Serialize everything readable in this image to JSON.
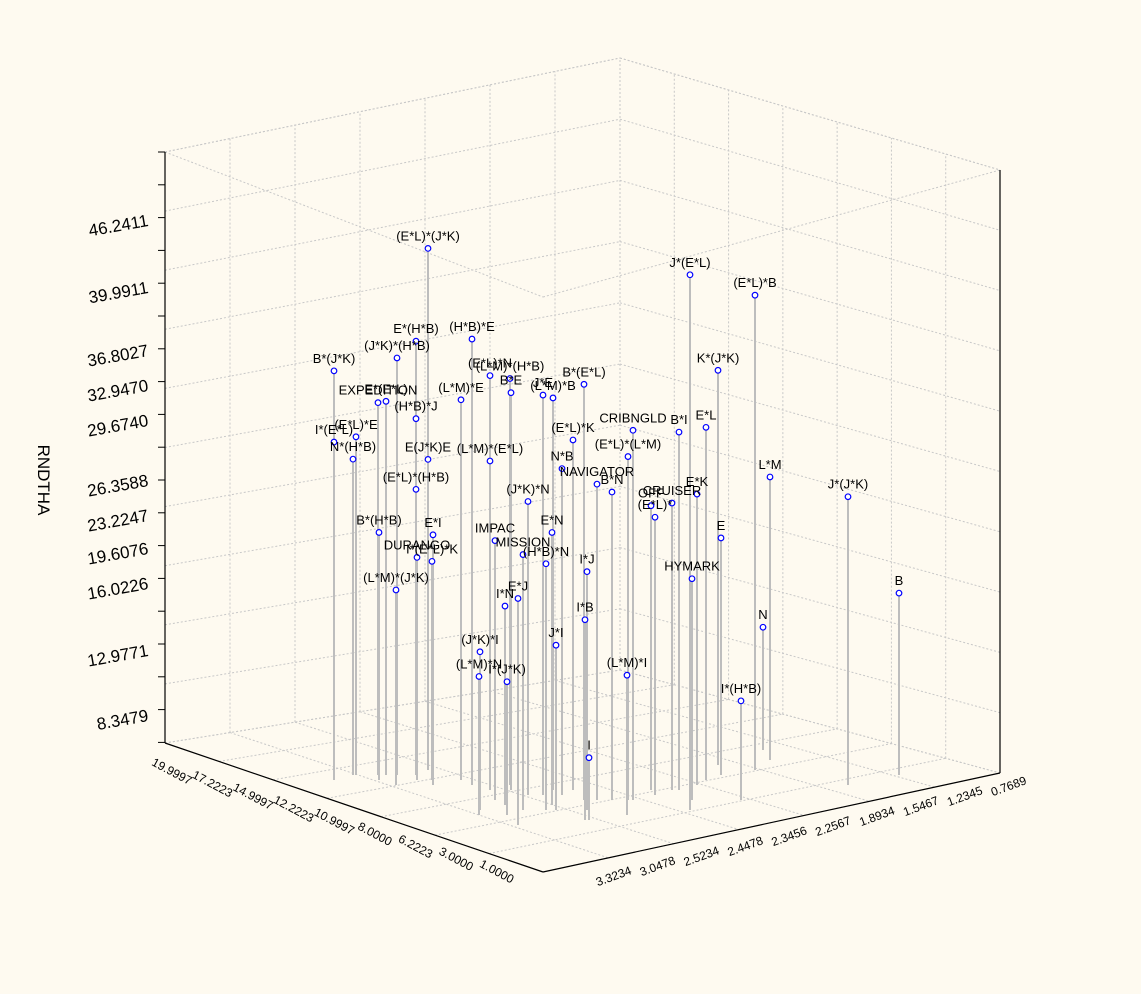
{
  "chart_data": {
    "type": "scatter",
    "projection": "3d-spike",
    "title": "",
    "zlabel": "RNDTHA",
    "xlabel": "",
    "ylabel": "",
    "z_ticks": [
      "46.2411",
      "39.9911",
      "36.8027",
      "32.9470",
      "29.6740",
      "26.3588",
      "23.2247",
      "19.6076",
      "16.0226",
      "12.9771",
      "8.3479"
    ],
    "left_axis_ticks": [
      "19.9997",
      "17.2223",
      "14.9997",
      "12.2223",
      "10.9997",
      "8.0000",
      "6.2223",
      "3.0000",
      "1.0000"
    ],
    "right_axis_ticks": [
      "3.3234",
      "3.0478",
      "2.5234",
      "2.4478",
      "2.3456",
      "2.2567",
      "1.8934",
      "1.5467",
      "1.2345",
      "0.7689"
    ],
    "colors": {
      "background": "#fefaf0",
      "grid": "#c8c8c8",
      "spike": "#bdbdbd",
      "point": "#0000ff",
      "text": "#000000"
    },
    "points": [
      {
        "label": "J*(E*L)",
        "z": 43.2
      },
      {
        "label": "(E*L)*(J*K)",
        "z": 41.4
      },
      {
        "label": "(E*L)*B",
        "z": 38.6
      },
      {
        "label": "(H*B)*E",
        "z": 36.4
      },
      {
        "label": "E*(H*B)",
        "z": 35.1
      },
      {
        "label": "B*(J*K)",
        "z": 33.6
      },
      {
        "label": "(J*K)*(H*B)",
        "z": 34.2
      },
      {
        "label": "(E*L)*N",
        "z": 34.0
      },
      {
        "label": "(L*M)*(H*B)",
        "z": 33.4
      },
      {
        "label": "B*(E*L)",
        "z": 34.1
      },
      {
        "label": "B*E",
        "z": 32.7
      },
      {
        "label": "J*E",
        "z": 32.9
      },
      {
        "label": "(L*M)*B",
        "z": 32.3
      },
      {
        "label": "K*(J*K)",
        "z": 32.5
      },
      {
        "label": "(L*M)*E",
        "z": 31.4
      },
      {
        "label": "EXPEDITION",
        "z": 30.8
      },
      {
        "label": "E*(E*L)",
        "z": 30.9
      },
      {
        "label": "CRIBNGLD",
        "z": 30.6
      },
      {
        "label": "B*I",
        "z": 29.7
      },
      {
        "label": "E*L",
        "z": 29.3
      },
      {
        "label": "(H*B)*J",
        "z": 29.2
      },
      {
        "label": "(E*L)*E",
        "z": 28.2
      },
      {
        "label": "I*(E*L)",
        "z": 27.8
      },
      {
        "label": "(E*L)*K",
        "z": 29.1
      },
      {
        "label": "(E*L)*(L*M)",
        "z": 28.6
      },
      {
        "label": "N*B",
        "z": 27.3
      },
      {
        "label": "(L*M)*(E*L)",
        "z": 27.5
      },
      {
        "label": "N*(H*B)",
        "z": 26.5
      },
      {
        "label": "E(J*K)E",
        "z": 26.1
      },
      {
        "label": "NAVIGATOR",
        "z": 26.5
      },
      {
        "label": "B*N",
        "z": 25.9
      },
      {
        "label": "(J*K)*N",
        "z": 24.8
      },
      {
        "label": "(E*L)*(H*B)",
        "z": 24.2
      },
      {
        "label": "CRUISER",
        "z": 24.3
      },
      {
        "label": "OFF",
        "z": 24.1
      },
      {
        "label": "E*K",
        "z": 24.6
      },
      {
        "label": "J*(J*K)",
        "z": 24.4
      },
      {
        "label": "L*M",
        "z": 24.0
      },
      {
        "label": "(E*L)*",
        "z": 23.6
      },
      {
        "label": "E*N",
        "z": 23.2
      },
      {
        "label": "IMPAC",
        "z": 22.2
      },
      {
        "label": "MISSION",
        "z": 21.9
      },
      {
        "label": "B*(H*B)",
        "z": 21.3
      },
      {
        "label": "E*I",
        "z": 21.5
      },
      {
        "label": "(H*B)*N",
        "z": 21.2
      },
      {
        "label": "I*J",
        "z": 20.6
      },
      {
        "label": "E*J",
        "z": 19.7
      },
      {
        "label": "E",
        "z": 20.5
      },
      {
        "label": "DURANGO",
        "z": 19.4
      },
      {
        "label": "HYMARK",
        "z": 19.3
      },
      {
        "label": "I*(E*L)*K",
        "z": 19.1
      },
      {
        "label": "I*N",
        "z": 17.6
      },
      {
        "label": "I*B",
        "z": 17.7
      },
      {
        "label": "(L*M)*(J*K)",
        "z": 17.3
      },
      {
        "label": "B",
        "z": 16.3
      },
      {
        "label": "J*I",
        "z": 15.0
      },
      {
        "label": "(J*K)*I",
        "z": 14.5
      },
      {
        "label": "(L*M)*N",
        "z": 13.0
      },
      {
        "label": "I*(J*K)",
        "z": 12.6
      },
      {
        "label": "(L*M)*I",
        "z": 13.1
      },
      {
        "label": "N",
        "z": 11.8
      },
      {
        "label": "I*(H*B)",
        "z": 10.0
      },
      {
        "label": "I",
        "z": 7.2
      }
    ]
  }
}
